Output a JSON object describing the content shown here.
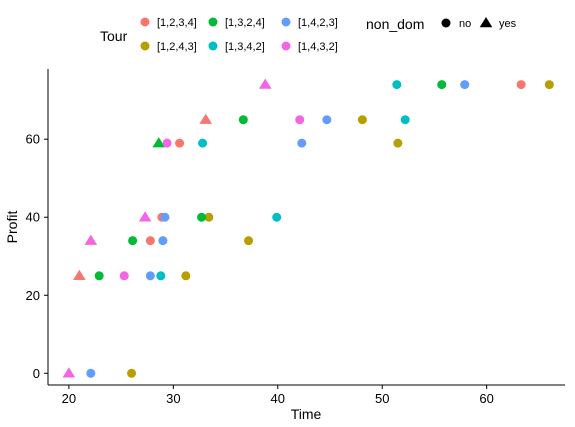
{
  "chart_data": {
    "type": "scatter",
    "xlabel": "Time",
    "ylabel": "Profit",
    "xlim": [
      18,
      67.5
    ],
    "ylim": [
      -3,
      78
    ],
    "x_ticks": [
      20,
      30,
      40,
      50,
      60
    ],
    "y_ticks": [
      0,
      20,
      40,
      60
    ],
    "grid": false,
    "legend_placement": "top",
    "legend": {
      "color_title": "Tour",
      "shape_title": "non_dom",
      "shape_entries": [
        {
          "label": "no",
          "shape": "circle"
        },
        {
          "label": "yes",
          "shape": "triangle"
        }
      ]
    },
    "series": [
      {
        "name": "[1,2,3,4]",
        "color": "#F8766D",
        "points": [
          {
            "x": 21.0,
            "y": 25,
            "non_dom": "yes"
          },
          {
            "x": 27.8,
            "y": 34,
            "non_dom": "no"
          },
          {
            "x": 28.9,
            "y": 40,
            "non_dom": "no"
          },
          {
            "x": 30.6,
            "y": 59,
            "non_dom": "no"
          },
          {
            "x": 33.1,
            "y": 65,
            "non_dom": "yes"
          },
          {
            "x": 63.3,
            "y": 74,
            "non_dom": "no"
          }
        ]
      },
      {
        "name": "[1,2,4,3]",
        "color": "#B79F00",
        "points": [
          {
            "x": 26.0,
            "y": 0,
            "non_dom": "no"
          },
          {
            "x": 31.2,
            "y": 25,
            "non_dom": "no"
          },
          {
            "x": 33.4,
            "y": 40,
            "non_dom": "no"
          },
          {
            "x": 37.2,
            "y": 34,
            "non_dom": "no"
          },
          {
            "x": 48.1,
            "y": 65,
            "non_dom": "no"
          },
          {
            "x": 51.5,
            "y": 59,
            "non_dom": "no"
          },
          {
            "x": 66.0,
            "y": 74,
            "non_dom": "no"
          }
        ]
      },
      {
        "name": "[1,3,2,4]",
        "color": "#00BA38",
        "points": [
          {
            "x": 22.9,
            "y": 25,
            "non_dom": "no"
          },
          {
            "x": 26.1,
            "y": 34,
            "non_dom": "no"
          },
          {
            "x": 28.6,
            "y": 59,
            "non_dom": "yes"
          },
          {
            "x": 32.7,
            "y": 40,
            "non_dom": "no"
          },
          {
            "x": 36.7,
            "y": 65,
            "non_dom": "no"
          },
          {
            "x": 55.7,
            "y": 74,
            "non_dom": "no"
          }
        ]
      },
      {
        "name": "[1,3,4,2]",
        "color": "#00BFC4",
        "points": [
          {
            "x": 28.8,
            "y": 25,
            "non_dom": "no"
          },
          {
            "x": 32.8,
            "y": 59,
            "non_dom": "no"
          },
          {
            "x": 39.9,
            "y": 40,
            "non_dom": "no"
          },
          {
            "x": 51.4,
            "y": 74,
            "non_dom": "no"
          },
          {
            "x": 52.2,
            "y": 65,
            "non_dom": "no"
          }
        ]
      },
      {
        "name": "[1,4,2,3]",
        "color": "#619CFF",
        "points": [
          {
            "x": 22.1,
            "y": 0,
            "non_dom": "no"
          },
          {
            "x": 27.8,
            "y": 25,
            "non_dom": "no"
          },
          {
            "x": 29.0,
            "y": 34,
            "non_dom": "no"
          },
          {
            "x": 29.2,
            "y": 40,
            "non_dom": "no"
          },
          {
            "x": 42.3,
            "y": 59,
            "non_dom": "no"
          },
          {
            "x": 44.7,
            "y": 65,
            "non_dom": "no"
          },
          {
            "x": 57.9,
            "y": 74,
            "non_dom": "no"
          }
        ]
      },
      {
        "name": "[1,4,3,2]",
        "color": "#F564E3",
        "points": [
          {
            "x": 20.0,
            "y": 0,
            "non_dom": "yes"
          },
          {
            "x": 22.1,
            "y": 34,
            "non_dom": "yes"
          },
          {
            "x": 25.3,
            "y": 25,
            "non_dom": "no"
          },
          {
            "x": 27.3,
            "y": 40,
            "non_dom": "yes"
          },
          {
            "x": 29.4,
            "y": 59,
            "non_dom": "no"
          },
          {
            "x": 38.8,
            "y": 74,
            "non_dom": "yes"
          },
          {
            "x": 42.1,
            "y": 65,
            "non_dom": "no"
          }
        ]
      }
    ]
  }
}
